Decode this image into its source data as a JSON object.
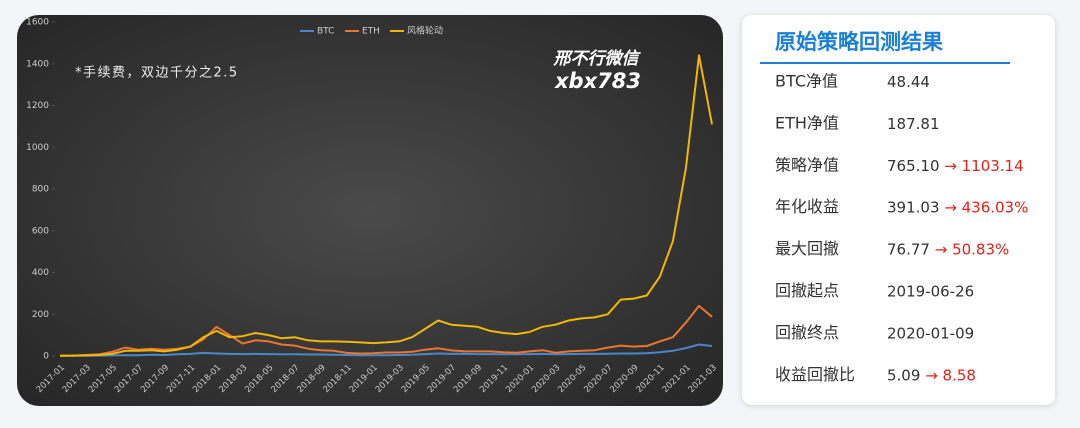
{
  "chart_data": {
    "type": "line",
    "annotations": [
      "*手续费，双边千分之2.5",
      "邢不行微信",
      "xbx783"
    ],
    "x": [
      "2017-01",
      null,
      "2017-03",
      null,
      "2017-05",
      null,
      "2017-07",
      null,
      "2017-09",
      null,
      "2017-11",
      null,
      "2018-01",
      null,
      "2018-03",
      null,
      "2018-05",
      null,
      "2018-07",
      null,
      "2018-09",
      null,
      "2018-11",
      null,
      "2019-01",
      null,
      "2019-03",
      null,
      "2019-05",
      null,
      "2019-07",
      null,
      "2019-09",
      null,
      "2019-11",
      null,
      "2020-01",
      null,
      "2020-03",
      null,
      "2020-05",
      null,
      "2020-07",
      null,
      "2020-09",
      null,
      "2020-11",
      null,
      "2021-01",
      null,
      "2021-03"
    ],
    "series": [
      {
        "name": "BTC",
        "color": "#4a86c8",
        "values": [
          1,
          1,
          1,
          2,
          3,
          4,
          4,
          6,
          5,
          8,
          10,
          15,
          12,
          10,
          9,
          10,
          9,
          8,
          8,
          7,
          7,
          6,
          5,
          4,
          4,
          4,
          5,
          6,
          9,
          12,
          10,
          11,
          9,
          9,
          8,
          8,
          9,
          10,
          8,
          9,
          10,
          10,
          11,
          12,
          12,
          13,
          18,
          25,
          38,
          55,
          48
        ]
      },
      {
        "name": "ETH",
        "color": "#e8762d",
        "values": [
          1,
          2,
          5,
          8,
          20,
          40,
          30,
          35,
          30,
          35,
          45,
          80,
          140,
          100,
          60,
          75,
          70,
          55,
          50,
          35,
          28,
          25,
          15,
          12,
          13,
          17,
          17,
          20,
          30,
          37,
          27,
          23,
          22,
          22,
          18,
          16,
          22,
          28,
          16,
          22,
          25,
          28,
          40,
          50,
          45,
          48,
          70,
          90,
          160,
          240,
          188
        ]
      },
      {
        "name": "风格轮动",
        "color": "#f2b705",
        "values": [
          1,
          2,
          3,
          5,
          10,
          25,
          25,
          28,
          22,
          30,
          45,
          90,
          120,
          90,
          95,
          110,
          100,
          85,
          90,
          75,
          70,
          70,
          68,
          65,
          62,
          65,
          70,
          90,
          130,
          170,
          150,
          145,
          140,
          120,
          110,
          105,
          115,
          140,
          150,
          170,
          180,
          185,
          200,
          270,
          275,
          290,
          380,
          550,
          900,
          1440,
          1110
        ]
      }
    ],
    "ylim": [
      0,
      1600
    ],
    "yticks": [
      0,
      200,
      400,
      600,
      800,
      1000,
      1200,
      1400,
      1600
    ]
  },
  "table": {
    "title": "原始策略回测结果",
    "rows": [
      {
        "label": "BTC净值",
        "value": "48.44"
      },
      {
        "label": "ETH净值",
        "value": "187.81"
      },
      {
        "label": "策略净值",
        "value": "765.10",
        "improved": "→ 1103.14"
      },
      {
        "label": "年化收益",
        "value": "391.03",
        "improved": "→ 436.03%"
      },
      {
        "label": "最大回撤",
        "value": "76.77",
        "improved": "→ 50.83%"
      },
      {
        "label": "回撤起点",
        "value": "2019-06-26"
      },
      {
        "label": "回撤终点",
        "value": "2020-01-09"
      },
      {
        "label": "收益回撤比",
        "value": "5.09",
        "improved": "→ 8.58"
      }
    ]
  }
}
